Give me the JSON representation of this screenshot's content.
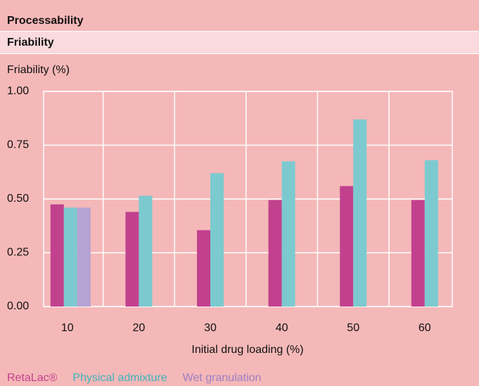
{
  "chart_data": {
    "type": "bar",
    "title": "Processability",
    "subtitle": "Friability",
    "y_label": "Friability (%)",
    "x_label": "Initial drug loading (%)",
    "categories": [
      "10",
      "20",
      "30",
      "40",
      "50",
      "60"
    ],
    "series": [
      {
        "name": "RetaLac®",
        "color": "#c2418f",
        "values": [
          0.475,
          0.44,
          0.355,
          0.495,
          0.56,
          0.495
        ]
      },
      {
        "name": "Physical admixture",
        "color": "#3fb3bd",
        "bar_color": "#7ccad0",
        "values": [
          0.46,
          0.515,
          0.62,
          0.675,
          0.87,
          0.68
        ]
      },
      {
        "name": "Wet granulation",
        "color": "#9b7fc4",
        "bar_color": "#b5a3d3",
        "values": [
          0.46,
          null,
          null,
          null,
          null,
          null
        ]
      }
    ],
    "ylim": [
      0,
      1
    ],
    "yticks": [
      {
        "value": 0,
        "label": "0.00"
      },
      {
        "value": 0.25,
        "label": "0.25"
      },
      {
        "value": 0.5,
        "label": "0.50"
      },
      {
        "value": 0.75,
        "label": "0.75"
      },
      {
        "value": 1,
        "label": "1.00"
      }
    ],
    "grid": true
  }
}
